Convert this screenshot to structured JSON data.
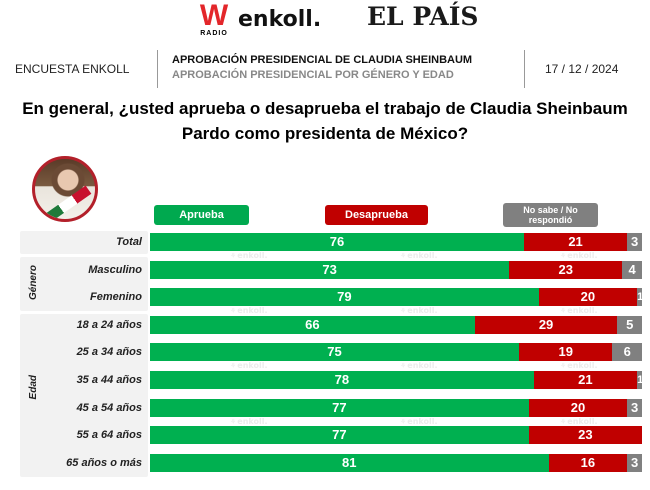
{
  "logos": {
    "w_radio": {
      "mark": "W",
      "sub": "RADIO"
    },
    "enkoll": "enkoll.",
    "el_pais": "EL PAÍS"
  },
  "header": {
    "left": "ENCUESTA ENKOLL",
    "title": "APROBACIÓN PRESIDENCIAL DE CLAUDIA SHEINBAUM",
    "subtitle": "APROBACIÓN PRESIDENCIAL POR GÉNERO Y EDAD",
    "date": "17 / 12 / 2024"
  },
  "question": {
    "line1": "En general, ¿usted aprueba o desaprueba el trabajo de Claudia Sheinbaum",
    "line2": "Pardo como presidenta de México?"
  },
  "watermark": "enkoll.",
  "avatar": {
    "icon": "portrait-photo"
  },
  "colors": {
    "aprueba": "#00b050",
    "desaprueba": "#c00000",
    "no_sabe": "#808080",
    "panel": "#f2f2f2"
  },
  "chart_data": {
    "type": "bar",
    "orientation": "horizontal",
    "stacked": true,
    "title": "En general, ¿usted aprueba o desaprueba el trabajo de Claudia Sheinbaum Pardo como presidenta de México?",
    "xlabel": "",
    "ylabel": "",
    "xlim": [
      0,
      100
    ],
    "unit": "%",
    "legend_position": "top",
    "legend": [
      "Aprueba",
      "Desaprueba",
      "No sabe  / No respondió"
    ],
    "groups": [
      {
        "name": "",
        "categories": [
          "Total"
        ]
      },
      {
        "name": "Género",
        "categories": [
          "Masculino",
          "Femenino"
        ]
      },
      {
        "name": "Edad",
        "categories": [
          "18 a 24 años",
          "25 a 34 años",
          "35 a 44 años",
          "45 a 54 años",
          "55 a 64 años",
          "65 años o más"
        ]
      }
    ],
    "categories": [
      "Total",
      "Masculino",
      "Femenino",
      "18 a 24 años",
      "25 a 34 años",
      "35 a 44 años",
      "45 a 54 años",
      "55 a 64 años",
      "65 años o más"
    ],
    "series": [
      {
        "name": "Aprueba",
        "values": [
          76,
          73,
          79,
          66,
          75,
          78,
          77,
          77,
          81
        ]
      },
      {
        "name": "Desaprueba",
        "values": [
          21,
          23,
          20,
          29,
          19,
          21,
          20,
          23,
          16
        ]
      },
      {
        "name": "No sabe  / No respondió",
        "values": [
          3,
          4,
          1,
          5,
          6,
          1,
          3,
          0,
          3
        ]
      }
    ]
  }
}
